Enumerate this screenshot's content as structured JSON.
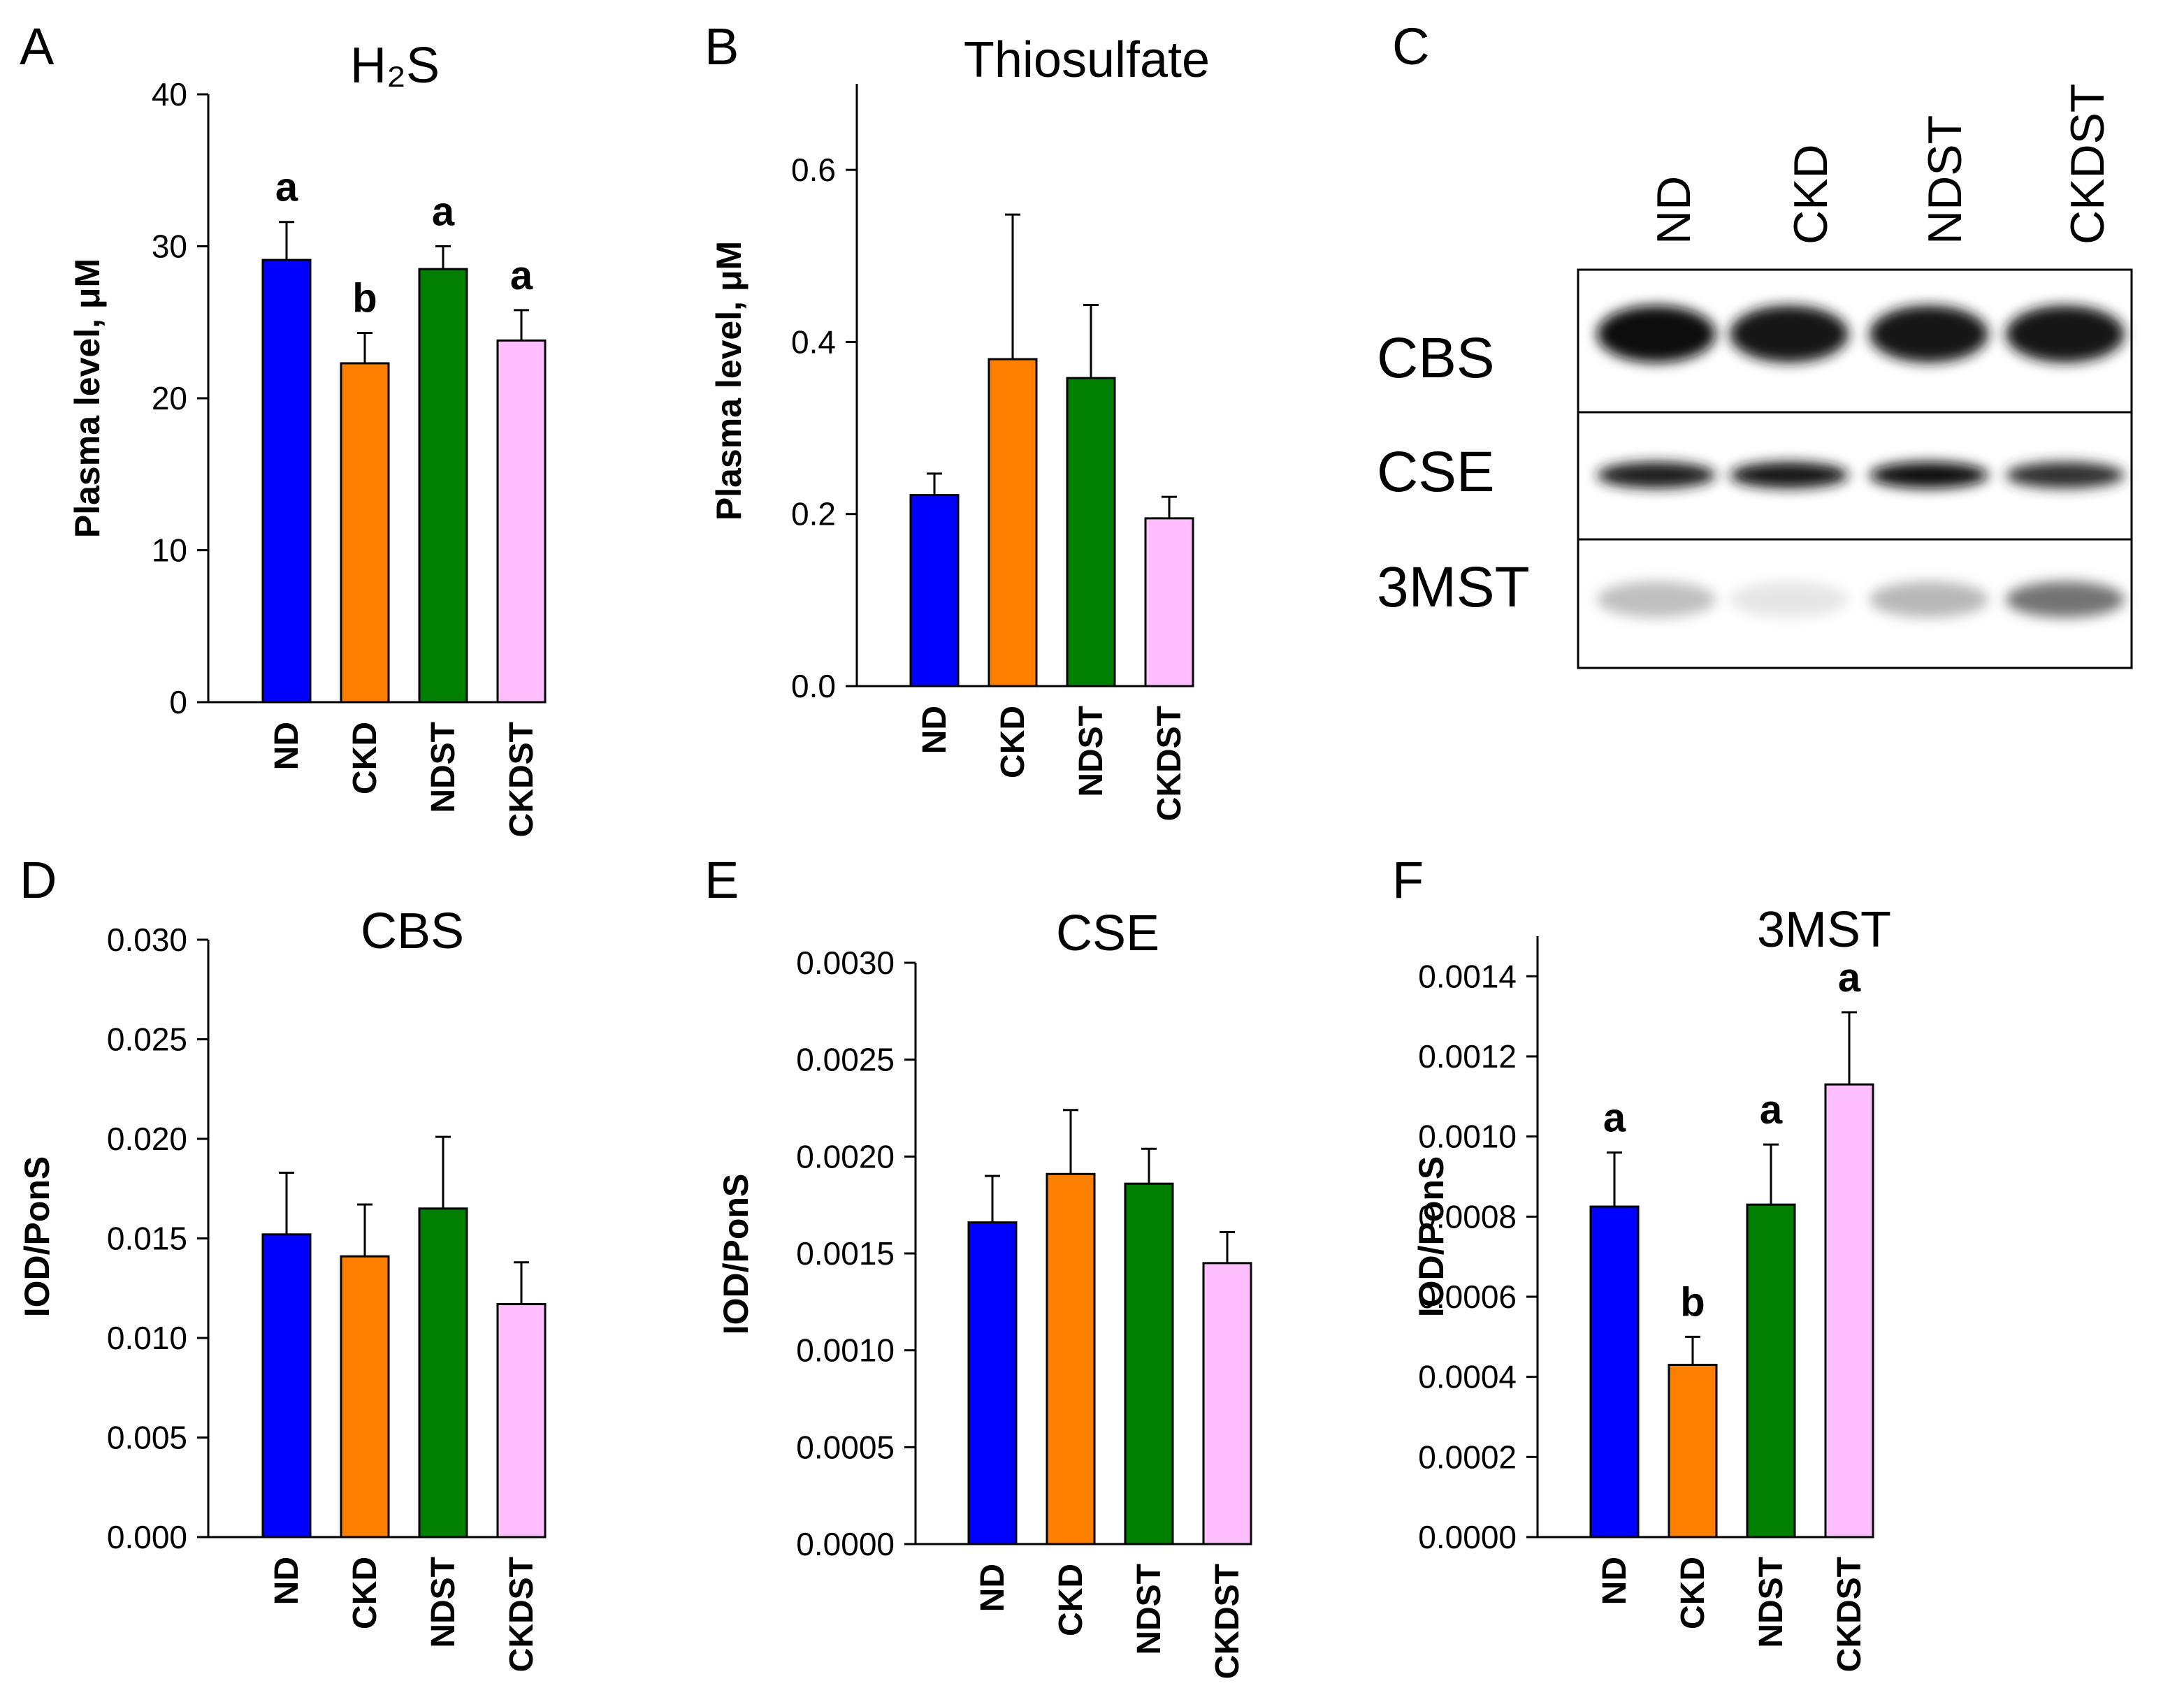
{
  "figure": {
    "groups": [
      "ND",
      "CKD",
      "NDST",
      "CKDST"
    ],
    "colors": {
      "ND": "#0000ff",
      "CKD": "#ff7f00",
      "NDST": "#007f00",
      "CKDST": "#ffbfff"
    }
  },
  "chart_data": [
    {
      "panel": "A",
      "type": "bar",
      "title": "H₂S",
      "categories": [
        "ND",
        "CKD",
        "NDST",
        "CKDST"
      ],
      "values": [
        29.1,
        22.3,
        28.5,
        23.8
      ],
      "errors": [
        2.5,
        2.0,
        1.5,
        2.0
      ],
      "significance": [
        "a",
        "b",
        "a",
        "a"
      ],
      "ylabel": "Plasma level, μM",
      "ylim": [
        0,
        40
      ],
      "yticks": [
        0,
        10,
        20,
        30,
        40
      ],
      "ytick_labels": [
        "0",
        "10",
        "20",
        "30",
        "40"
      ]
    },
    {
      "panel": "B",
      "type": "bar",
      "title": "Thiosulfate",
      "categories": [
        "ND",
        "CKD",
        "NDST",
        "CKDST"
      ],
      "values": [
        0.222,
        0.38,
        0.358,
        0.195
      ],
      "errors": [
        0.025,
        0.168,
        0.085,
        0.025
      ],
      "significance": [
        "",
        "",
        "",
        ""
      ],
      "ylabel": "Plasma level, μM",
      "ylim": [
        0,
        0.7
      ],
      "yticks": [
        0,
        0.2,
        0.4,
        0.6
      ],
      "ytick_labels": [
        "0.0",
        "0.2",
        "0.4",
        "0.6"
      ]
    },
    {
      "panel": "D",
      "type": "bar",
      "title": "CBS",
      "categories": [
        "ND",
        "CKD",
        "NDST",
        "CKDST"
      ],
      "values": [
        0.0152,
        0.0141,
        0.0165,
        0.0117
      ],
      "errors": [
        0.0031,
        0.0026,
        0.0036,
        0.0021
      ],
      "significance": [
        "",
        "",
        "",
        ""
      ],
      "ylabel": "IOD/PonS",
      "ylim": [
        0,
        0.03
      ],
      "yticks": [
        0,
        0.005,
        0.01,
        0.015,
        0.02,
        0.025,
        0.03
      ],
      "ytick_labels": [
        "0.000",
        "0.005",
        "0.010",
        "0.015",
        "0.020",
        "0.025",
        "0.030"
      ]
    },
    {
      "panel": "E",
      "type": "bar",
      "title": "CSE",
      "categories": [
        "ND",
        "CKD",
        "NDST",
        "CKDST"
      ],
      "values": [
        0.00166,
        0.00191,
        0.00186,
        0.00145
      ],
      "errors": [
        0.00024,
        0.00033,
        0.00018,
        0.00016
      ],
      "significance": [
        "",
        "",
        "",
        ""
      ],
      "ylabel": "IOD/PonS",
      "ylim": [
        0,
        0.003
      ],
      "yticks": [
        0,
        0.0005,
        0.001,
        0.0015,
        0.002,
        0.0025,
        0.003
      ],
      "ytick_labels": [
        "0.0000",
        "0.0005",
        "0.0010",
        "0.0015",
        "0.0020",
        "0.0025",
        "0.0030"
      ]
    },
    {
      "panel": "F",
      "type": "bar",
      "title": "3MST",
      "categories": [
        "ND",
        "CKD",
        "NDST",
        "CKDST"
      ],
      "values": [
        0.000825,
        0.00043,
        0.00083,
        0.00113
      ],
      "errors": [
        0.000135,
        7e-05,
        0.00015,
        0.00018
      ],
      "significance": [
        "a",
        "b",
        "a",
        "a"
      ],
      "ylabel": "IOD/PonS",
      "ylim": [
        0,
        0.0015
      ],
      "yticks": [
        0,
        0.0002,
        0.0004,
        0.0006,
        0.0008,
        0.001,
        0.0012,
        0.0014
      ],
      "ytick_labels": [
        "0.0000",
        "0.0002",
        "0.0004",
        "0.0006",
        "0.0008",
        "0.0010",
        "0.0012",
        "0.0014"
      ]
    }
  ],
  "western_blot": {
    "panel": "C",
    "lanes": [
      "ND",
      "CKD",
      "NDST",
      "CKDST"
    ],
    "rows": [
      {
        "label": "CBS",
        "intensity": [
          0.95,
          0.9,
          0.9,
          0.92
        ]
      },
      {
        "label": "CSE",
        "intensity": [
          0.88,
          0.9,
          0.95,
          0.82
        ]
      },
      {
        "label": "3MST",
        "intensity": [
          0.25,
          0.1,
          0.28,
          0.55
        ]
      }
    ]
  }
}
